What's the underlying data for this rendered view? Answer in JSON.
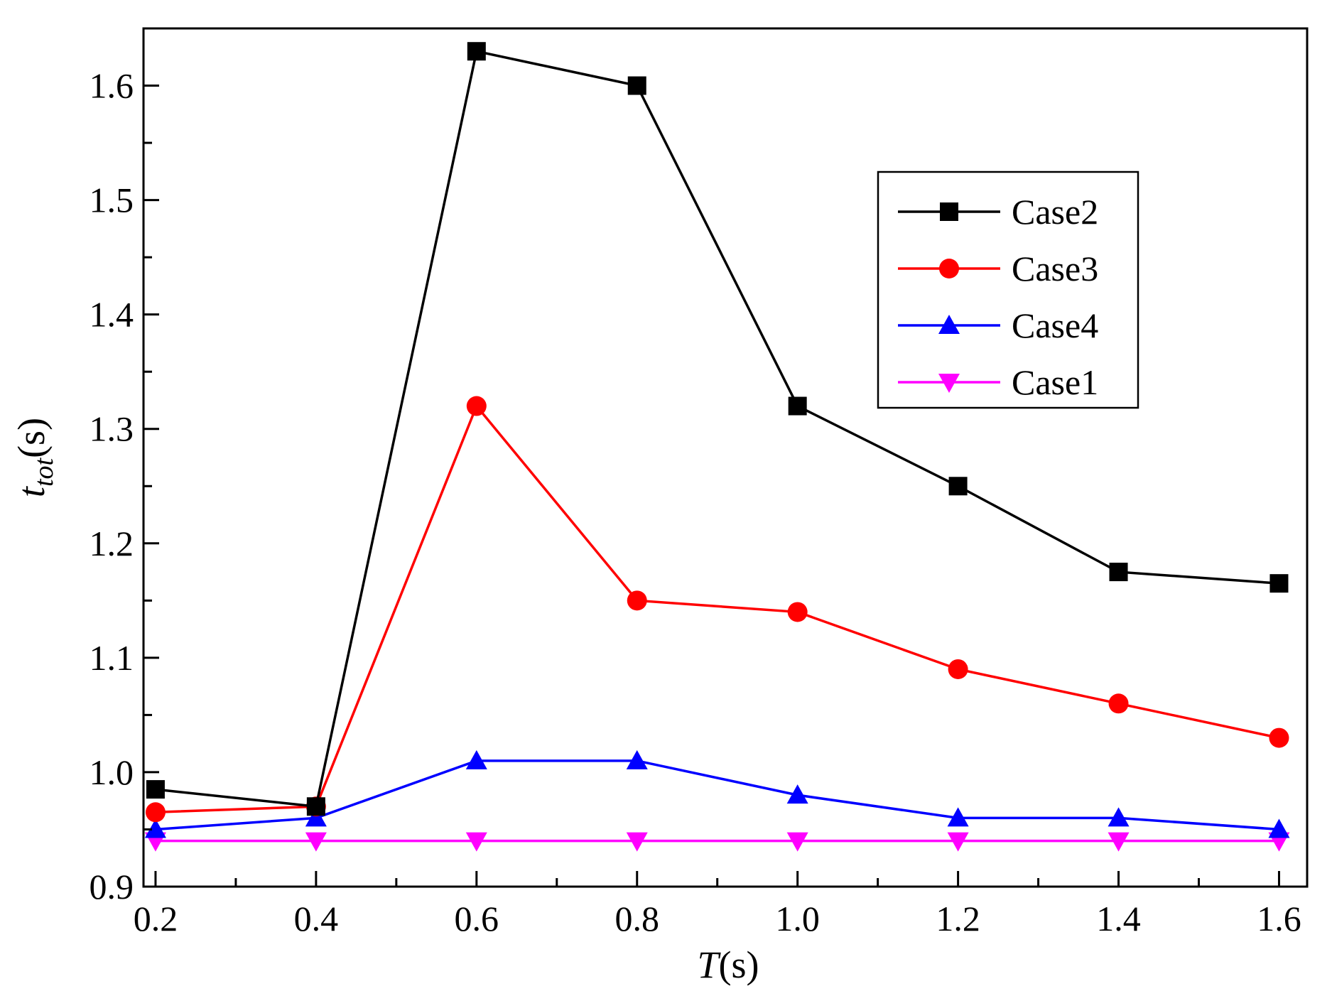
{
  "chart_data": {
    "type": "line",
    "title": "",
    "xlabel": {
      "symbol": "T",
      "unit": "(s)"
    },
    "ylabel": {
      "symbol": "t",
      "subscript": "tot",
      "unit": "(s)"
    },
    "xlim": [
      0.185,
      1.635
    ],
    "ylim": [
      0.9,
      1.65
    ],
    "x_ticks": [
      0.2,
      0.4,
      0.6,
      0.8,
      1.0,
      1.2,
      1.4,
      1.6
    ],
    "x_tick_labels": [
      "0.2",
      "0.4",
      "0.6",
      "0.8",
      "1.0",
      "1.2",
      "1.4",
      "1.6"
    ],
    "y_ticks": [
      0.9,
      1.0,
      1.1,
      1.2,
      1.3,
      1.4,
      1.5,
      1.6
    ],
    "y_tick_labels": [
      "0.9",
      "1.0",
      "1.1",
      "1.2",
      "1.3",
      "1.4",
      "1.5",
      "1.6"
    ],
    "legend_position": "upper-right",
    "grid": false,
    "x": [
      0.2,
      0.4,
      0.6,
      0.8,
      1.0,
      1.2,
      1.4,
      1.6
    ],
    "series": [
      {
        "name": "Case2",
        "color": "#000000",
        "marker": "square",
        "values": [
          0.985,
          0.97,
          1.63,
          1.6,
          1.32,
          1.25,
          1.175,
          1.165
        ]
      },
      {
        "name": "Case3",
        "color": "#ff0000",
        "marker": "circle",
        "values": [
          0.965,
          0.97,
          1.32,
          1.15,
          1.14,
          1.09,
          1.06,
          1.03
        ]
      },
      {
        "name": "Case4",
        "color": "#0000ff",
        "marker": "triangle-up",
        "values": [
          0.95,
          0.96,
          1.01,
          1.01,
          0.98,
          0.96,
          0.96,
          0.95
        ]
      },
      {
        "name": "Case1",
        "color": "#ff00ff",
        "marker": "triangle-down",
        "values": [
          0.94,
          0.94,
          0.94,
          0.94,
          0.94,
          0.94,
          0.94,
          0.94
        ]
      }
    ]
  }
}
